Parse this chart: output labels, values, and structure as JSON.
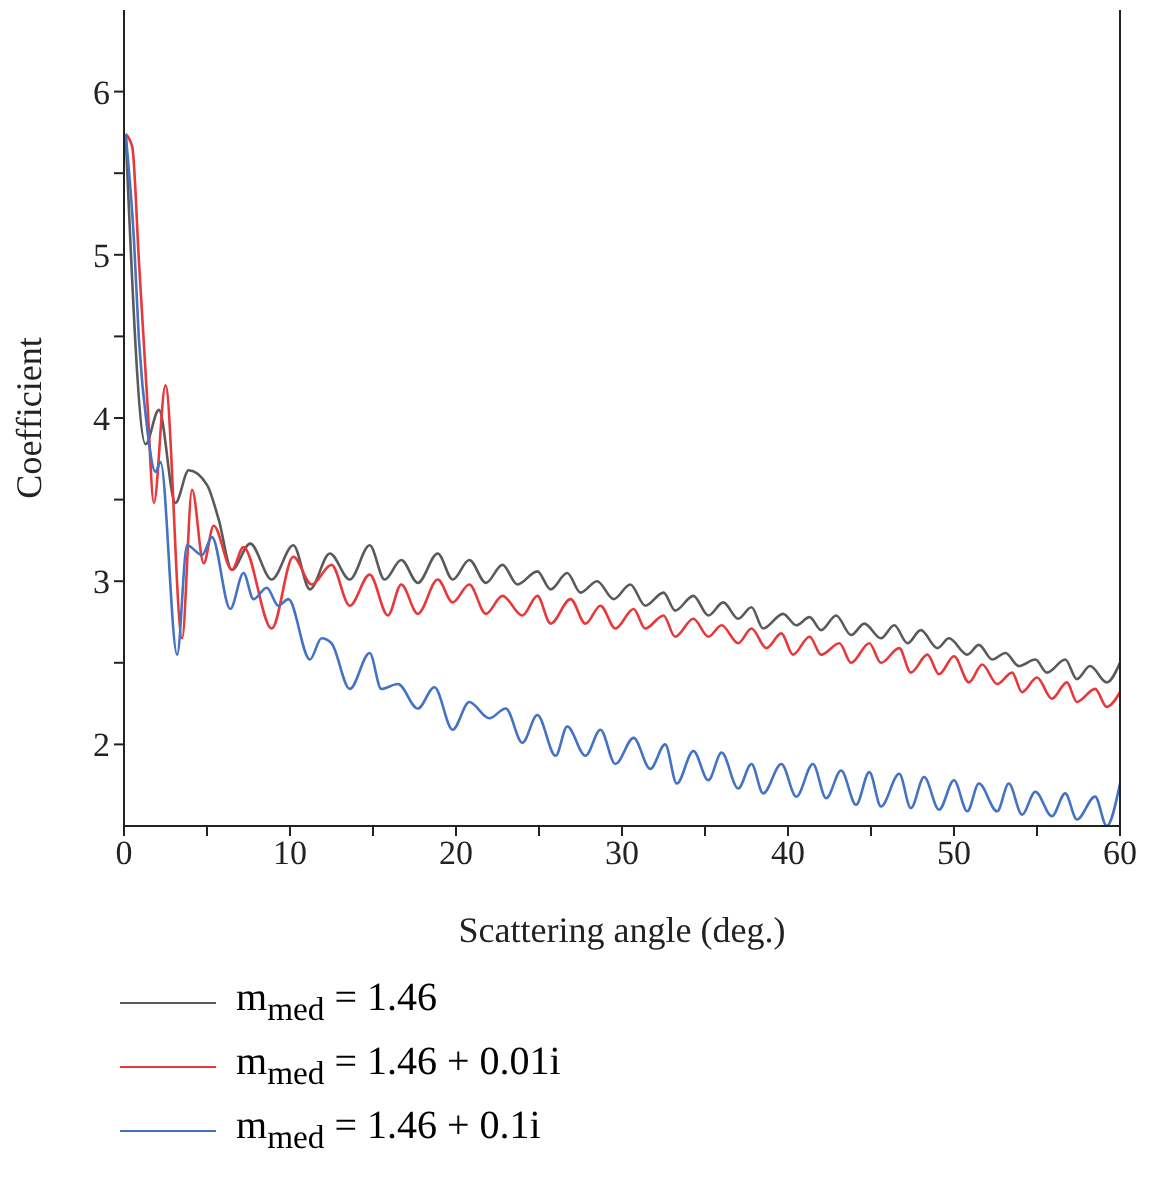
{
  "chart_data": {
    "type": "line",
    "xlabel": "Scattering angle (deg.)",
    "ylabel": "Coefficient",
    "xlim": [
      0,
      60
    ],
    "ylim": [
      1.5,
      6.5
    ],
    "xticks": [
      0,
      {
        "value": 5,
        "label": null
      },
      10,
      {
        "value": 15,
        "label": null
      },
      20,
      {
        "value": 25,
        "label": null
      },
      30,
      {
        "value": 35,
        "label": null
      },
      40,
      {
        "value": 45,
        "label": null
      },
      50,
      {
        "value": 55,
        "label": null
      },
      60
    ],
    "yticks": [
      2,
      {
        "value": 2.5,
        "label": null
      },
      3,
      {
        "value": 3.5,
        "label": null
      },
      4,
      {
        "value": 4.5,
        "label": null
      },
      5,
      {
        "value": 5.5,
        "label": null
      },
      6
    ],
    "grid": false,
    "legend": "bottom",
    "marker": "none",
    "line_style": "solid",
    "series": [
      {
        "name": "m$_{med}$ = 1.46",
        "color": "#5a5a5a",
        "x": [
          0.1,
          1.3,
          2.1,
          3.1,
          3.9,
          5.0,
          5.7,
          6.5,
          7.6,
          8.9,
          10.2,
          11.2,
          12.4,
          13.6,
          14.8,
          15.7,
          16.7,
          17.7,
          18.9,
          19.8,
          20.8,
          21.8,
          22.8,
          23.7,
          24.9,
          25.7,
          26.7,
          27.5,
          28.5,
          29.5,
          30.5,
          31.4,
          32.5,
          33.2,
          34.3,
          35.2,
          36.1,
          37.0,
          37.8,
          38.5,
          39.7,
          40.5,
          41.3,
          42.0,
          42.9,
          43.8,
          44.6,
          45.6,
          46.4,
          47.2,
          48.0,
          49.0,
          49.7,
          50.8,
          51.5,
          52.3,
          53.1,
          53.9,
          54.9,
          55.6,
          56.7,
          57.4,
          58.2,
          59.2,
          60.0
        ],
        "values": [
          5.74,
          3.84,
          4.05,
          3.48,
          3.68,
          3.59,
          3.38,
          3.07,
          3.23,
          3.01,
          3.22,
          2.95,
          3.17,
          3.01,
          3.22,
          3.01,
          3.13,
          2.99,
          3.17,
          3.01,
          3.13,
          2.99,
          3.1,
          2.98,
          3.06,
          2.95,
          3.05,
          2.93,
          3.0,
          2.89,
          2.98,
          2.85,
          2.93,
          2.82,
          2.91,
          2.79,
          2.87,
          2.77,
          2.84,
          2.71,
          2.8,
          2.73,
          2.78,
          2.7,
          2.79,
          2.67,
          2.74,
          2.65,
          2.73,
          2.62,
          2.7,
          2.59,
          2.65,
          2.55,
          2.61,
          2.52,
          2.56,
          2.48,
          2.52,
          2.44,
          2.52,
          2.4,
          2.48,
          2.38,
          2.5
        ]
      },
      {
        "name": "m$_{med}$ = 1.46 + 0.01i",
        "color": "#e8383a",
        "x": [
          0.1,
          0.5,
          0.9,
          1.4,
          1.8,
          2.5,
          3.5,
          4.1,
          4.8,
          5.4,
          6.5,
          7.2,
          8.9,
          10.2,
          11.3,
          12.5,
          13.6,
          14.8,
          15.9,
          16.7,
          17.7,
          18.9,
          19.8,
          20.8,
          21.8,
          22.8,
          24.0,
          24.9,
          25.7,
          26.9,
          27.8,
          28.7,
          29.6,
          30.7,
          31.4,
          32.5,
          33.2,
          34.3,
          35.2,
          36.0,
          37.0,
          37.8,
          38.7,
          39.6,
          40.3,
          41.3,
          42.0,
          43.1,
          43.8,
          44.9,
          45.6,
          46.7,
          47.4,
          48.4,
          49.1,
          50.0,
          50.9,
          51.7,
          52.6,
          53.5,
          54.1,
          55.0,
          55.9,
          56.8,
          57.4,
          58.5,
          59.2,
          60.0
        ],
        "values": [
          5.74,
          5.66,
          4.96,
          4.11,
          3.48,
          4.2,
          2.65,
          3.56,
          3.11,
          3.34,
          3.07,
          3.21,
          2.71,
          3.15,
          2.98,
          3.1,
          2.85,
          3.04,
          2.79,
          2.98,
          2.8,
          3.01,
          2.87,
          2.98,
          2.8,
          2.91,
          2.79,
          2.91,
          2.74,
          2.89,
          2.74,
          2.85,
          2.71,
          2.83,
          2.71,
          2.79,
          2.66,
          2.77,
          2.66,
          2.73,
          2.62,
          2.71,
          2.59,
          2.68,
          2.55,
          2.66,
          2.55,
          2.62,
          2.5,
          2.62,
          2.5,
          2.59,
          2.44,
          2.55,
          2.43,
          2.54,
          2.38,
          2.49,
          2.37,
          2.44,
          2.32,
          2.41,
          2.28,
          2.38,
          2.26,
          2.34,
          2.23,
          2.32
        ]
      },
      {
        "name": "m$_{med}$ = 1.46 + 0.1i",
        "color": "#4472c4",
        "x": [
          0.1,
          0.6,
          0.9,
          1.4,
          1.9,
          2.2,
          3.2,
          3.8,
          4.7,
          5.3,
          6.4,
          7.2,
          7.8,
          8.6,
          9.3,
          9.9,
          11.2,
          11.9,
          12.5,
          13.6,
          14.8,
          15.5,
          16.5,
          17.7,
          18.7,
          19.8,
          20.8,
          22.0,
          23.0,
          24.0,
          24.9,
          26.0,
          26.7,
          27.8,
          28.7,
          29.6,
          30.7,
          31.7,
          32.6,
          33.3,
          34.3,
          35.2,
          36.0,
          37.0,
          37.8,
          38.5,
          39.6,
          40.5,
          41.5,
          42.3,
          43.2,
          44.1,
          44.9,
          45.6,
          46.7,
          47.4,
          48.2,
          49.1,
          50.0,
          50.8,
          51.5,
          52.6,
          53.3,
          54.1,
          54.9,
          55.9,
          56.7,
          57.4,
          58.5,
          59.2,
          60.0
        ],
        "values": [
          5.74,
          5.09,
          4.48,
          3.93,
          3.67,
          3.73,
          2.55,
          3.22,
          3.16,
          3.27,
          2.83,
          3.05,
          2.89,
          2.96,
          2.85,
          2.89,
          2.52,
          2.65,
          2.62,
          2.34,
          2.56,
          2.34,
          2.37,
          2.22,
          2.35,
          2.09,
          2.26,
          2.16,
          2.22,
          2.01,
          2.18,
          1.93,
          2.11,
          1.93,
          2.09,
          1.88,
          2.04,
          1.85,
          2.0,
          1.76,
          1.96,
          1.78,
          1.95,
          1.73,
          1.88,
          1.7,
          1.88,
          1.68,
          1.88,
          1.67,
          1.84,
          1.63,
          1.83,
          1.62,
          1.82,
          1.61,
          1.8,
          1.6,
          1.78,
          1.59,
          1.76,
          1.59,
          1.76,
          1.57,
          1.71,
          1.56,
          1.7,
          1.54,
          1.68,
          1.5,
          1.76
        ]
      }
    ]
  }
}
